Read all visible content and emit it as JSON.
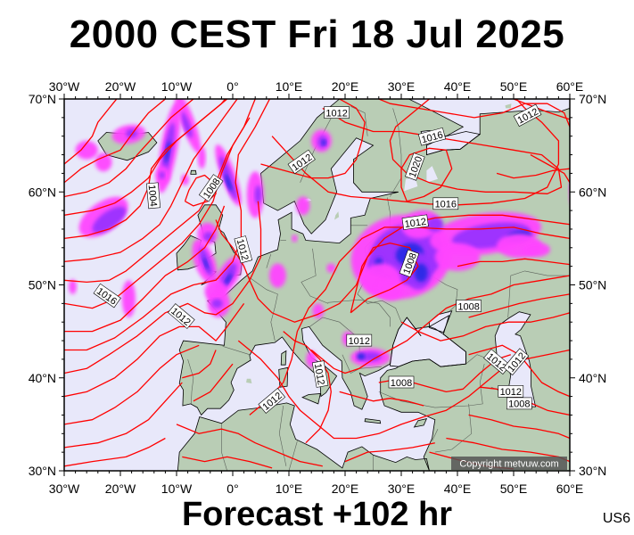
{
  "title": "2000 CEST Fri 18 Jul 2025",
  "forecast_label": "Forecast +102 hr",
  "model_code": "US6",
  "copyright": "Copyright metvuw.com",
  "lon_labels": [
    "30°W",
    "20°W",
    "10°W",
    "0°",
    "10°E",
    "20°E",
    "30°E",
    "40°E",
    "50°E",
    "60°E"
  ],
  "lat_labels": [
    "70°N",
    "60°N",
    "50°N",
    "40°N",
    "30°N"
  ],
  "isobar_labels": [
    {
      "text": "1012",
      "lon": 18.5,
      "lat": 68.5,
      "rot": 0
    },
    {
      "text": "1012",
      "lon": 52.5,
      "lat": 68.2,
      "rot": -28
    },
    {
      "text": "1016",
      "lon": 35.5,
      "lat": 65.9,
      "rot": -15
    },
    {
      "text": "1020",
      "lon": 32.5,
      "lat": 62.7,
      "rot": -70
    },
    {
      "text": "1012",
      "lon": 12.3,
      "lat": 63.2,
      "rot": -35
    },
    {
      "text": "1008",
      "lon": -3.8,
      "lat": 60.4,
      "rot": -55
    },
    {
      "text": "1004",
      "lon": -14.2,
      "lat": 59.6,
      "rot": 85
    },
    {
      "text": "1016",
      "lon": 37.9,
      "lat": 58.7,
      "rot": 0
    },
    {
      "text": "1012",
      "lon": 32.5,
      "lat": 56.7,
      "rot": -8
    },
    {
      "text": "1012",
      "lon": 1.8,
      "lat": 53.8,
      "rot": 75
    },
    {
      "text": "1008",
      "lon": 31.5,
      "lat": 52.3,
      "rot": -70
    },
    {
      "text": "1016",
      "lon": -22.4,
      "lat": 48.8,
      "rot": 35
    },
    {
      "text": "1008",
      "lon": 42.0,
      "lat": 47.7,
      "rot": 0
    },
    {
      "text": "1012",
      "lon": -9.2,
      "lat": 46.6,
      "rot": 40
    },
    {
      "text": "1012",
      "lon": 22.5,
      "lat": 44.0,
      "rot": 0
    },
    {
      "text": "1012",
      "lon": 15.5,
      "lat": 40.4,
      "rot": 80
    },
    {
      "text": "1012",
      "lon": 47.0,
      "lat": 41.7,
      "rot": 40
    },
    {
      "text": "1012",
      "lon": 50.5,
      "lat": 41.7,
      "rot": -50
    },
    {
      "text": "1008",
      "lon": 30.0,
      "lat": 39.5,
      "rot": 0
    },
    {
      "text": "1012",
      "lon": 7.0,
      "lat": 37.5,
      "rot": -40
    },
    {
      "text": "1012",
      "lon": 49.5,
      "lat": 38.5,
      "rot": 0
    },
    {
      "text": "1008",
      "lon": 51.0,
      "lat": 37.2,
      "rot": 0
    }
  ],
  "colors": {
    "ocean": "#e8e8fa",
    "land": "#b9cdb5",
    "isobar": "#ff0000",
    "coast": "#000000",
    "precip_light": "#ff44ff",
    "precip_mid": "#9a33ff",
    "precip_heavy": "#2a2ae6"
  }
}
